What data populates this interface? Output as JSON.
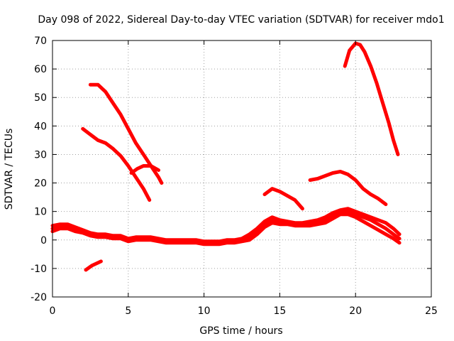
{
  "chart_data": {
    "type": "line",
    "title": "Day 098 of 2022, Sidereal Day-to-day VTEC variation (SDTVAR) for receiver mdo1",
    "xlabel": "GPS time / hours",
    "ylabel": "SDTVAR / TECUs",
    "xlim": [
      0,
      25
    ],
    "ylim": [
      -20,
      70
    ],
    "xticks": [
      0,
      5,
      10,
      15,
      20,
      25
    ],
    "yticks": [
      -20,
      -10,
      0,
      10,
      20,
      30,
      40,
      50,
      60,
      70
    ],
    "xtick_labels": [
      "0",
      "5",
      "10",
      "15",
      "20",
      "25"
    ],
    "ytick_labels": [
      "-20",
      "-10",
      "0",
      "10",
      "20",
      "30",
      "40",
      "50",
      "60",
      "70"
    ],
    "grid": true,
    "color": "#ff0000",
    "series": [
      {
        "name": "arc-high-peak",
        "x": [
          19.3,
          19.6,
          20.0,
          20.3,
          20.6,
          21.0,
          21.4,
          21.8,
          22.2,
          22.5,
          22.8
        ],
        "y": [
          61,
          66.5,
          69,
          68.5,
          66,
          61,
          55,
          48,
          41,
          35,
          30
        ]
      },
      {
        "name": "arc-early-high",
        "x": [
          2.5,
          3.0,
          3.5,
          4.0,
          4.5,
          5.0,
          5.5,
          6.0,
          6.5,
          7.0,
          7.2
        ],
        "y": [
          54.5,
          54.5,
          52,
          48,
          44,
          39,
          34,
          30,
          26,
          22,
          20
        ]
      },
      {
        "name": "arc-early-mid",
        "x": [
          2.0,
          2.5,
          3.0,
          3.5,
          4.0,
          4.5,
          5.0,
          5.5,
          6.0,
          6.4
        ],
        "y": [
          39,
          37,
          35,
          34,
          32,
          29.5,
          26,
          22,
          18,
          14
        ]
      },
      {
        "name": "arc-early-bump",
        "x": [
          5.2,
          5.6,
          6.0,
          6.5,
          7.0
        ],
        "y": [
          23.5,
          25,
          26,
          26,
          24.5
        ]
      },
      {
        "name": "arc-midday-mid",
        "x": [
          14.0,
          14.5,
          15.0,
          15.5,
          16.0,
          16.5
        ],
        "y": [
          16,
          18,
          17,
          15.5,
          14,
          11
        ]
      },
      {
        "name": "arc-late-mid",
        "x": [
          17.0,
          17.5,
          18.0,
          18.5,
          19.0,
          19.5,
          20.0,
          20.5,
          21.0,
          21.5,
          22.0
        ],
        "y": [
          21,
          21.5,
          22.5,
          23.5,
          24,
          23,
          21,
          18,
          16,
          14.5,
          12.5
        ]
      },
      {
        "name": "arc-negative",
        "x": [
          2.2,
          2.6,
          3.0,
          3.2
        ],
        "y": [
          -10.5,
          -9,
          -8,
          -7.5
        ]
      },
      {
        "name": "band-baseline",
        "x": [
          0.0,
          0.5,
          1.0,
          1.5,
          2.0,
          2.5,
          3.0,
          3.5,
          4.0,
          4.5,
          5.0,
          5.5,
          6.0,
          6.5,
          7.0,
          7.5,
          8.0,
          8.5,
          9.0,
          9.5,
          10.0,
          10.5,
          11.0,
          11.5,
          12.0,
          12.5,
          13.0,
          13.5,
          14.0,
          14.5,
          15.0,
          15.5,
          16.0,
          16.5,
          17.0,
          17.5,
          18.0,
          18.5,
          19.0,
          19.5,
          20.0,
          20.5,
          21.0,
          21.5,
          22.0,
          22.5,
          22.9
        ],
        "y": [
          4,
          5,
          4.5,
          4,
          3,
          2,
          1.5,
          1.5,
          1,
          1,
          0,
          0.5,
          0.5,
          0.5,
          0,
          -0.5,
          -0.5,
          -0.5,
          -0.5,
          -0.5,
          -1,
          -1,
          -1,
          -0.5,
          -0.5,
          0,
          1,
          3,
          5.5,
          7,
          6.5,
          6,
          5.5,
          5.5,
          6,
          6,
          7,
          8.5,
          10,
          10,
          9,
          8,
          7,
          5.5,
          4,
          2,
          0.5
        ]
      },
      {
        "name": "band-upper",
        "x": [
          0.0,
          0.5,
          1.0,
          1.5,
          2.0,
          2.5,
          3.0,
          3.5,
          4.0,
          4.5,
          5.0,
          5.5,
          6.0,
          6.5,
          7.0,
          7.5,
          8.0,
          8.5,
          9.0,
          9.5,
          10.0,
          10.5,
          11.0,
          11.5,
          12.0,
          12.5,
          13.0,
          13.5,
          14.0,
          14.5,
          15.0,
          15.5,
          16.0,
          16.5,
          17.0,
          17.5,
          18.0,
          18.5,
          19.0,
          19.5,
          20.0,
          20.5,
          21.0,
          21.5,
          22.0,
          22.5,
          22.9
        ],
        "y": [
          5,
          5.5,
          5.5,
          4.5,
          3.5,
          2.5,
          2,
          2,
          1.5,
          1.5,
          0.5,
          1,
          1,
          1,
          0.5,
          0,
          0,
          0,
          0,
          0,
          -0.5,
          -0.5,
          -0.5,
          0,
          0,
          0.5,
          2,
          4,
          6.5,
          8,
          7,
          6.5,
          6,
          6,
          6.5,
          7,
          8,
          9.5,
          10.5,
          11,
          10,
          9,
          8,
          7,
          6,
          4,
          2
        ]
      },
      {
        "name": "band-lower",
        "x": [
          0.0,
          0.5,
          1.0,
          1.5,
          2.0,
          2.5,
          3.0,
          3.5,
          4.0,
          4.5,
          5.0,
          5.5,
          6.0,
          6.5,
          7.0,
          7.5,
          8.0,
          8.5,
          9.0,
          9.5,
          10.0,
          10.5,
          11.0,
          11.5,
          12.0,
          12.5,
          13.0,
          13.5,
          14.0,
          14.5,
          15.0,
          15.5,
          16.0,
          16.5,
          17.0,
          17.5,
          18.0,
          18.5,
          19.0,
          19.5,
          20.0,
          20.5,
          21.0,
          21.5,
          22.0,
          22.5,
          22.9
        ],
        "y": [
          3,
          4,
          4,
          3,
          2.5,
          1.5,
          1,
          1,
          0.5,
          0.5,
          -0.5,
          0,
          0,
          0,
          -0.5,
          -1,
          -1,
          -1,
          -1,
          -1,
          -1.5,
          -1.5,
          -1.5,
          -1,
          -1,
          -0.5,
          0,
          2,
          4.5,
          6,
          5.5,
          5.5,
          5,
          5,
          5,
          5.5,
          6,
          7.5,
          9,
          9,
          8,
          6.5,
          5,
          3.5,
          2,
          0.5,
          -1
        ]
      }
    ]
  }
}
